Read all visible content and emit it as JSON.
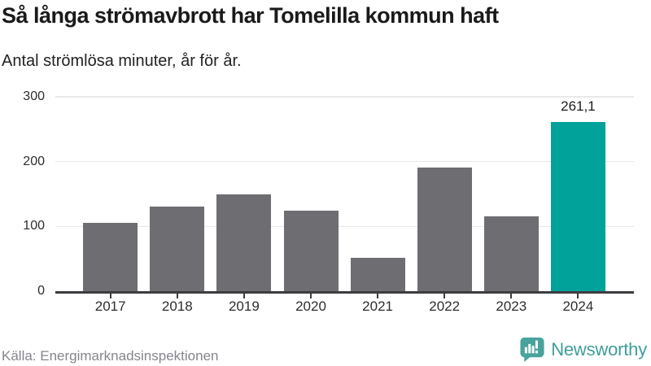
{
  "chart_data": {
    "type": "bar",
    "title": "Så långa strömavbrott har Tomelilla kommun haft",
    "subtitle": "Antal strömlösa minuter, år för år.",
    "categories": [
      "2017",
      "2018",
      "2019",
      "2020",
      "2021",
      "2022",
      "2023",
      "2024"
    ],
    "values": [
      105,
      131,
      150,
      124,
      52,
      191,
      115,
      261.1
    ],
    "value_labels": [
      "",
      "",
      "",
      "",
      "",
      "",
      "",
      "261,1"
    ],
    "highlight_index": 7,
    "ylabel": "",
    "xlabel": "",
    "ylim": [
      0,
      300
    ],
    "yticks": [
      0,
      100,
      200,
      300
    ],
    "grid": true,
    "legend": "none",
    "colors": {
      "bar": "#6d6d72",
      "highlight": "#00a29a",
      "gridline": "#e8e8e8",
      "axis": "#3d3d40",
      "tick": "#3d3d40"
    }
  },
  "footer": {
    "source": "Källa: Energimarknadsinspektionen",
    "logo": {
      "text": "Newsworthy",
      "icon": "newsworthy-bar-chart-speech-bubble-icon",
      "color": "#3f9e98",
      "icon_color": "#47a39c"
    }
  }
}
